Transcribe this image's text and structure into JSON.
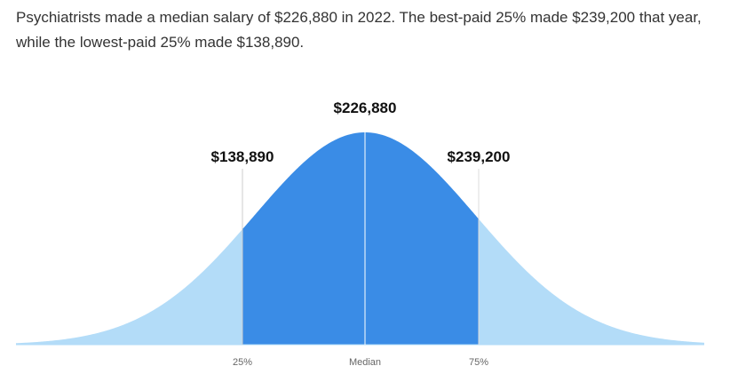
{
  "intro": "Psychiatrists made a median salary of $226,880 in 2022. The best-paid 25% made $239,200 that year, while the lowest-paid 25% made $138,890.",
  "markers": [
    {
      "label": "25%",
      "value_label": "$138,890"
    },
    {
      "label": "Median",
      "value_label": "$226,880"
    },
    {
      "label": "75%",
      "value_label": "$239,200"
    }
  ]
}
